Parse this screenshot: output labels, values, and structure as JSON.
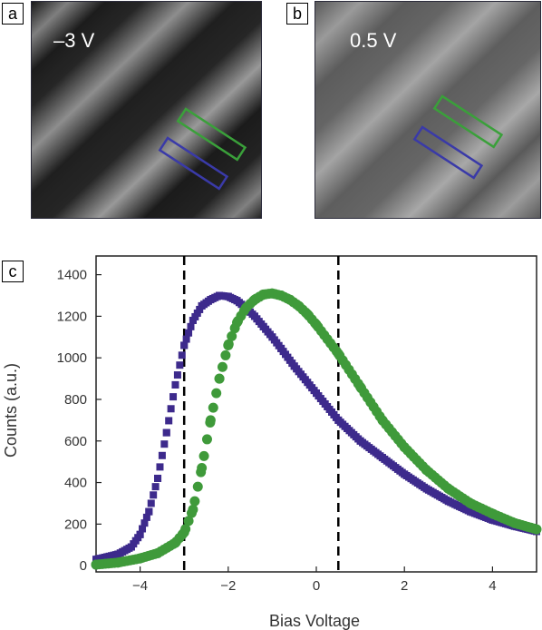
{
  "panels": {
    "a": {
      "label": "a",
      "voltage": "–3 V"
    },
    "b": {
      "label": "b",
      "voltage": "0.5 V"
    },
    "c": {
      "label": "c"
    }
  },
  "colors": {
    "blue_series": "#3d2a8c",
    "green_series": "#3f9a3a",
    "box_green": "#3aa03a",
    "box_blue": "#3a3aa8"
  },
  "chart_data": {
    "type": "scatter",
    "xlabel": "Bias Voltage",
    "ylabel": "Counts (a.u.)",
    "xlim": [
      -5,
      5
    ],
    "ylim": [
      -30,
      1490
    ],
    "xticks": [
      -4,
      -2,
      0,
      2,
      4
    ],
    "yticks": [
      0,
      200,
      400,
      600,
      800,
      1000,
      1200,
      1400
    ],
    "vlines": [
      -3,
      0.5
    ],
    "grid": false,
    "series": [
      {
        "marker": "square",
        "color": "#3d2a8c",
        "x": [
          -5,
          -4.5,
          -4.2,
          -4.0,
          -3.8,
          -3.6,
          -3.4,
          -3.2,
          -3.0,
          -2.8,
          -2.6,
          -2.4,
          -2.2,
          -2.0,
          -1.8,
          -1.6,
          -1.4,
          -1.2,
          -1.0,
          -0.8,
          -0.5,
          0,
          0.5,
          1.0,
          1.5,
          2.0,
          2.5,
          3.0,
          3.5,
          4.0,
          4.5,
          5.0
        ],
        "y": [
          30,
          55,
          90,
          150,
          260,
          420,
          640,
          870,
          1060,
          1180,
          1250,
          1280,
          1300,
          1295,
          1275,
          1240,
          1200,
          1150,
          1100,
          1045,
          960,
          830,
          700,
          600,
          520,
          440,
          370,
          310,
          260,
          220,
          190,
          165
        ]
      },
      {
        "marker": "circle",
        "color": "#3f9a3a",
        "x": [
          -5,
          -4.5,
          -4.0,
          -3.6,
          -3.2,
          -3.0,
          -2.8,
          -2.6,
          -2.4,
          -2.2,
          -2.0,
          -1.8,
          -1.6,
          -1.4,
          -1.2,
          -1.0,
          -0.8,
          -0.6,
          -0.4,
          -0.2,
          0,
          0.5,
          1.0,
          1.5,
          2.0,
          2.5,
          3.0,
          3.5,
          4.0,
          4.5,
          5.0
        ],
        "y": [
          5,
          15,
          35,
          60,
          110,
          160,
          270,
          470,
          700,
          900,
          1060,
          1170,
          1240,
          1280,
          1305,
          1310,
          1300,
          1280,
          1250,
          1210,
          1160,
          1020,
          860,
          700,
          570,
          460,
          370,
          300,
          250,
          205,
          175
        ]
      }
    ]
  }
}
